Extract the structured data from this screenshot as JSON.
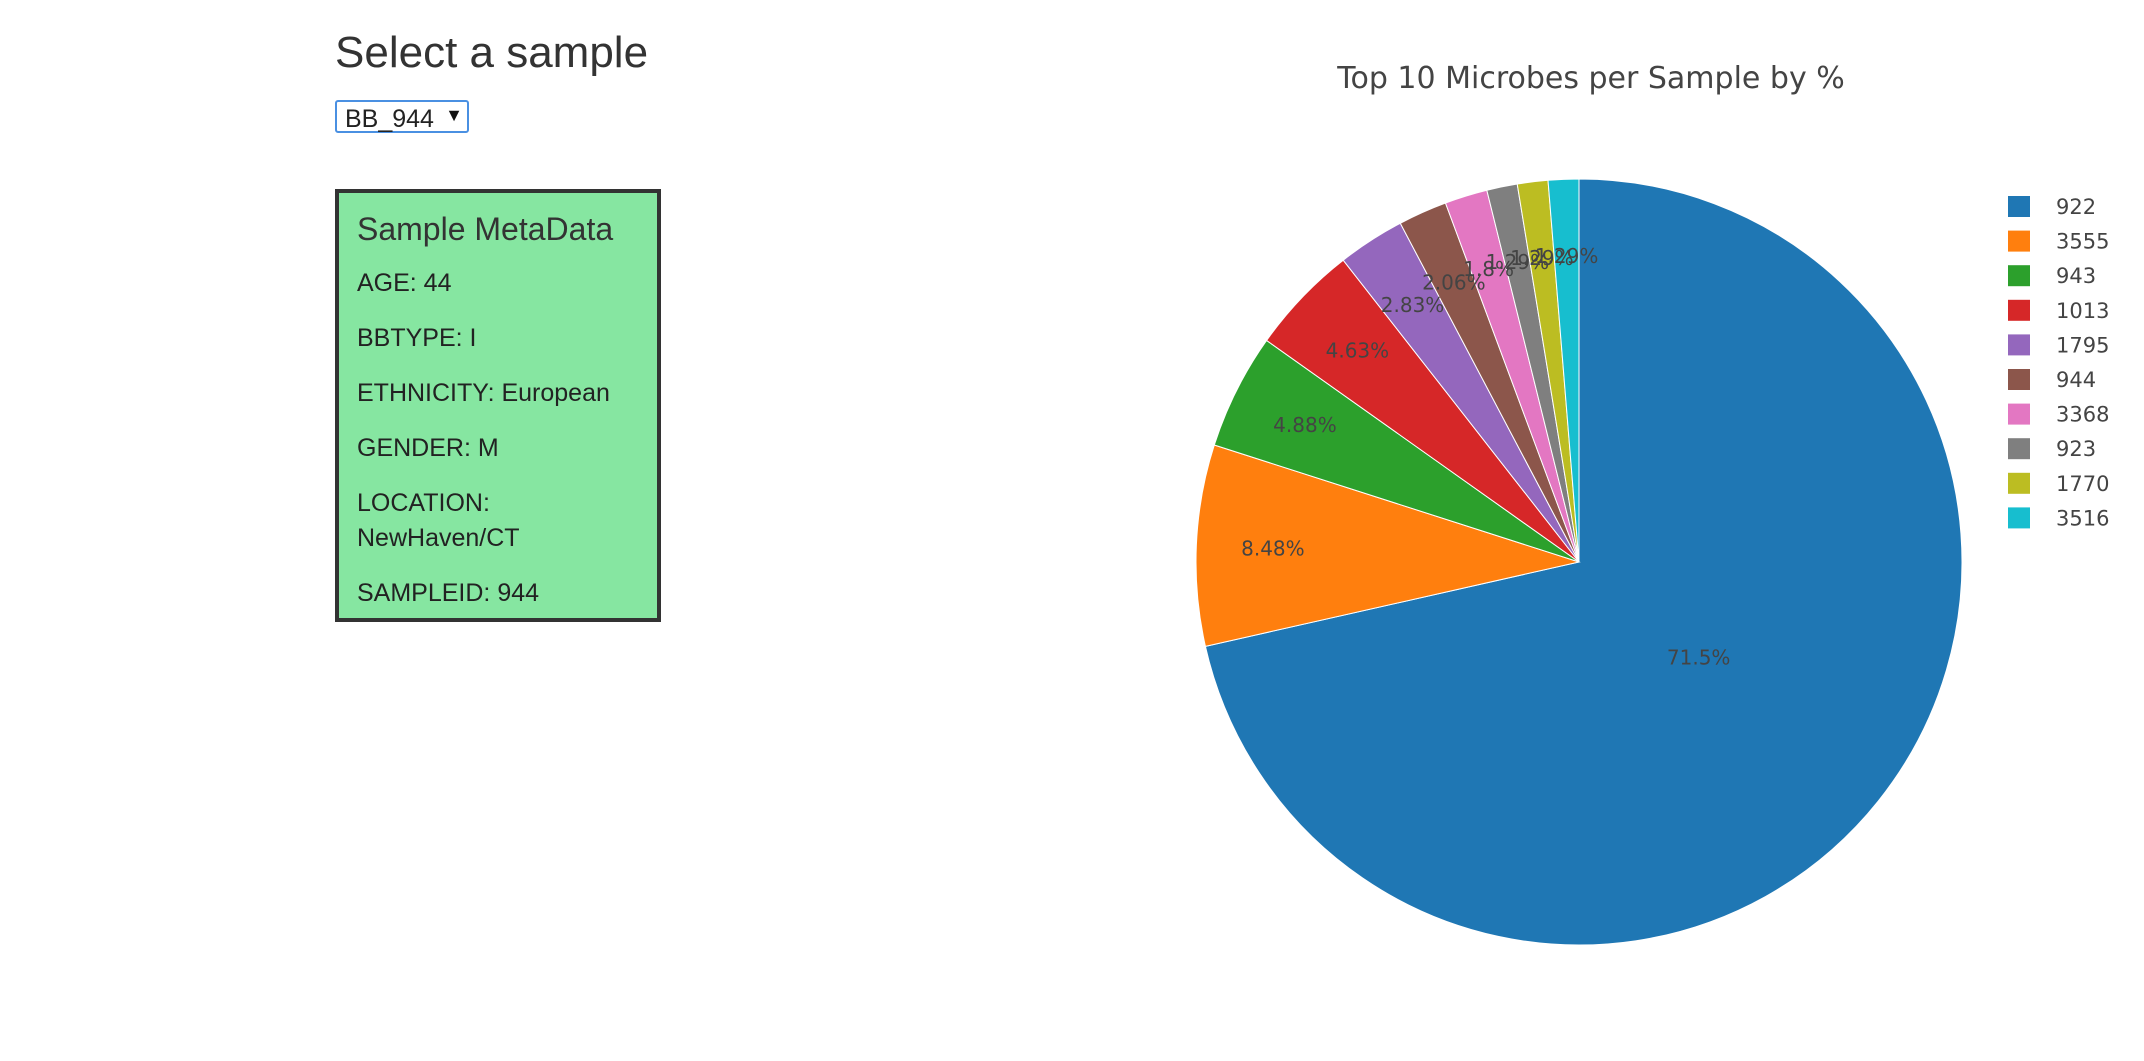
{
  "header": {
    "title": "Select a sample"
  },
  "selector": {
    "value": "BB_944",
    "options": [
      "BB_944"
    ]
  },
  "metadata": {
    "title": "Sample MetaData",
    "rows": [
      "AGE: 44",
      "BBTYPE: I",
      "ETHNICITY: European",
      "GENDER: M",
      "LOCATION: NewHaven/CT",
      "SAMPLEID: 944"
    ]
  },
  "chart_data": {
    "type": "pie",
    "title": "Top 10 Microbes per Sample by %",
    "labels": [
      "922",
      "3555",
      "943",
      "1013",
      "1795",
      "944",
      "3368",
      "923",
      "1770",
      "3516"
    ],
    "values": [
      71.5,
      8.48,
      4.88,
      4.63,
      2.83,
      2.06,
      1.8,
      1.29,
      1.29,
      1.29
    ],
    "value_labels": [
      "71.5%",
      "8.48%",
      "4.88%",
      "4.63%",
      "2.83%",
      "2.06%",
      "1.8%",
      "1.29%",
      "1.29%",
      "1.29%"
    ],
    "colors": [
      "#1f77b4",
      "#ff7f0e",
      "#2ca02c",
      "#d62728",
      "#9467bd",
      "#8c564b",
      "#e377c2",
      "#7f7f7f",
      "#bcbd22",
      "#17becf"
    ],
    "direction": "clockwise",
    "legend": "right"
  }
}
